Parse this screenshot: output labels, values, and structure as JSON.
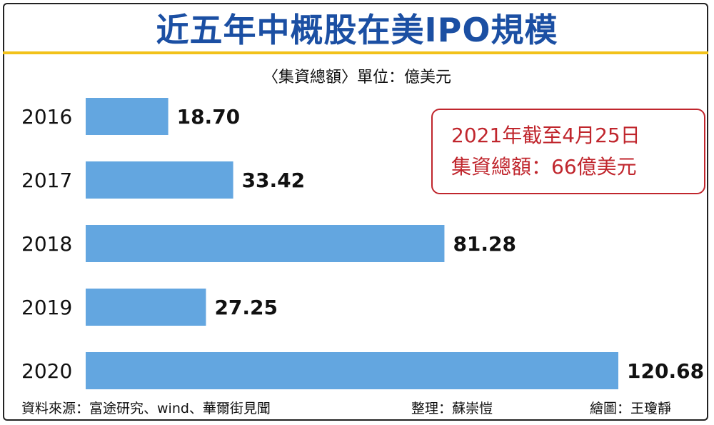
{
  "title": "近五年中概股在美IPO規模",
  "unit_label": "〈集資總額〉單位：億美元",
  "callout": {
    "line1": "2021年截至4月25日",
    "line2": "集資總額：66億美元"
  },
  "footer": {
    "source": "資料來源：富途研究、wind、華爾街見聞",
    "editor": "整理：蘇崇愷",
    "artist": "繪圖：王瓊靜"
  },
  "colors": {
    "bar": "#63a6e0",
    "title": "#1b4fa3",
    "rule": "#f2c21a",
    "callout": "#c0262d"
  },
  "chart_data": {
    "type": "bar",
    "orientation": "horizontal",
    "categories": [
      "2016",
      "2017",
      "2018",
      "2019",
      "2020"
    ],
    "values": [
      18.7,
      33.42,
      81.28,
      27.25,
      120.68
    ],
    "value_labels": [
      "18.70",
      "33.42",
      "81.28",
      "27.25",
      "120.68"
    ],
    "xlim": [
      0,
      120.68
    ],
    "grid": false,
    "legend": "none"
  }
}
